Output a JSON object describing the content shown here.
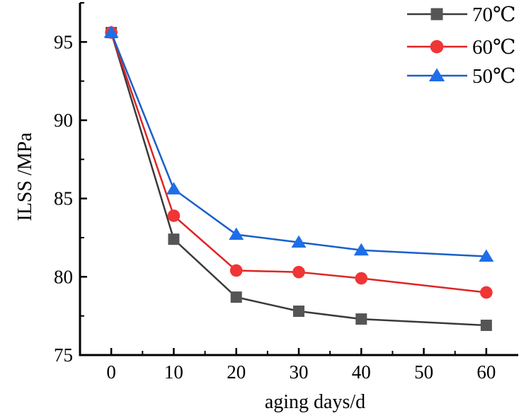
{
  "chart_data": {
    "type": "line",
    "xlabel": "aging days/d",
    "ylabel": "ILSS /MPa",
    "xlim": [
      -5,
      65
    ],
    "ylim": [
      75,
      97.5
    ],
    "xticks": [
      0,
      10,
      20,
      30,
      40,
      50,
      60
    ],
    "yticks": [
      75,
      80,
      85,
      90,
      95
    ],
    "x": [
      0,
      10,
      20,
      30,
      40,
      60
    ],
    "grid": false,
    "legend": "top-right",
    "series": [
      {
        "name": "70℃",
        "marker": "square",
        "color": "#3a3a3a",
        "markerColor": "#555555",
        "values": [
          95.6,
          82.4,
          78.7,
          77.8,
          77.3,
          76.9
        ]
      },
      {
        "name": "60℃",
        "marker": "circle",
        "color": "#e02424",
        "markerColor": "#f03535",
        "values": [
          95.6,
          83.9,
          80.4,
          80.3,
          79.9,
          79.0
        ]
      },
      {
        "name": "50℃",
        "marker": "triangle",
        "color": "#1a5fc8",
        "markerColor": "#1e6ee8",
        "values": [
          95.6,
          85.6,
          82.7,
          82.2,
          81.7,
          81.3
        ]
      }
    ]
  }
}
